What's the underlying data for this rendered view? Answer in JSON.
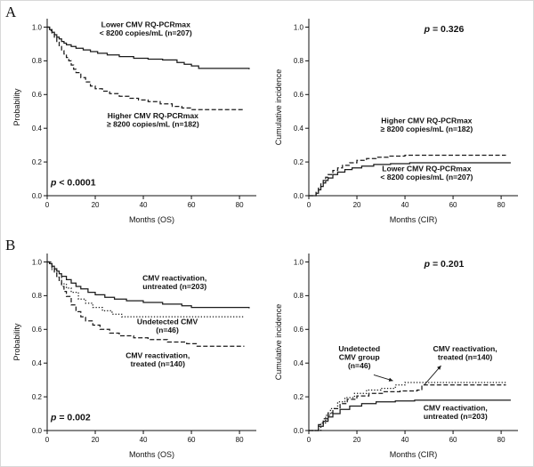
{
  "panels": {
    "a_label": "A",
    "b_label": "B"
  },
  "colors": {
    "line": "#1a1a1a",
    "background": "#ffffff"
  },
  "chart_data": [
    {
      "id": "panel-a-os",
      "type": "line",
      "subtype": "kaplan-meier-step",
      "title": "",
      "xlabel": "Months (OS)",
      "ylabel": "Probability",
      "xlim": [
        0,
        87
      ],
      "ylim": [
        0,
        1.05
      ],
      "xticks": [
        0,
        20,
        40,
        60,
        80
      ],
      "yticks": [
        0.0,
        0.2,
        0.4,
        0.6,
        0.8,
        1.0
      ],
      "grid": false,
      "p_value": {
        "italic": "p",
        "rest": "< 0.0001",
        "x": 1.5,
        "y": 0.06,
        "anchor": "start"
      },
      "series": [
        {
          "name": "Lower CMV RQ-PCRmax < 8200 copies/mL (n=207)",
          "style": "solid",
          "x": [
            0,
            1,
            2,
            3,
            4,
            5,
            6,
            7,
            8,
            10,
            12,
            15,
            18,
            21,
            25,
            30,
            36,
            42,
            48,
            54,
            57,
            60,
            63,
            84
          ],
          "y": [
            1.0,
            0.985,
            0.97,
            0.955,
            0.94,
            0.93,
            0.915,
            0.905,
            0.895,
            0.885,
            0.875,
            0.865,
            0.855,
            0.845,
            0.835,
            0.825,
            0.815,
            0.81,
            0.805,
            0.79,
            0.78,
            0.77,
            0.755,
            0.75
          ]
        },
        {
          "name": "Higher CMV RQ-PCRmax ≥ 8200 copies/mL (n=182)",
          "style": "dashed",
          "x": [
            0,
            1,
            2,
            3,
            4,
            5,
            6,
            7,
            8,
            9,
            10,
            11,
            12,
            14,
            16,
            18,
            20,
            23,
            26,
            30,
            34,
            38,
            42,
            47,
            52,
            56,
            60,
            82
          ],
          "y": [
            1.0,
            0.98,
            0.96,
            0.935,
            0.91,
            0.885,
            0.86,
            0.84,
            0.82,
            0.8,
            0.775,
            0.75,
            0.73,
            0.7,
            0.675,
            0.65,
            0.635,
            0.62,
            0.605,
            0.59,
            0.578,
            0.568,
            0.558,
            0.545,
            0.53,
            0.52,
            0.51,
            0.51
          ]
        }
      ],
      "annotations": [
        {
          "lines": [
            "Lower CMV RQ-PCRmax",
            "< 8200 copies/mL (n=207)"
          ],
          "x": 41,
          "y": 1.0,
          "anchor": "middle"
        },
        {
          "lines": [
            "Higher CMV RQ-PCRmax",
            "≥ 8200 copies/mL (n=182)"
          ],
          "x": 44,
          "y": 0.46,
          "anchor": "middle"
        }
      ],
      "arrows": []
    },
    {
      "id": "panel-a-cir",
      "type": "line",
      "subtype": "cumulative-incidence-step",
      "title": "",
      "xlabel": "Months (CIR)",
      "ylabel": "Cumulative incidence",
      "xlim": [
        0,
        87
      ],
      "ylim": [
        0,
        1.05
      ],
      "xticks": [
        0,
        20,
        40,
        60,
        80
      ],
      "yticks": [
        0.0,
        0.2,
        0.4,
        0.6,
        0.8,
        1.0
      ],
      "grid": false,
      "p_value": {
        "italic": "p",
        "rest": "= 0.326",
        "x": 48,
        "y": 0.97,
        "anchor": "start"
      },
      "series": [
        {
          "name": "Higher CMV RQ-PCRmax ≥ 8200 copies/mL (n=182)",
          "style": "dashed",
          "x": [
            0,
            2,
            3,
            4,
            5,
            6,
            7,
            8,
            10,
            12,
            14,
            17,
            20,
            24,
            28,
            33,
            40,
            82
          ],
          "y": [
            0,
            0,
            0.02,
            0.045,
            0.07,
            0.09,
            0.11,
            0.125,
            0.15,
            0.165,
            0.18,
            0.195,
            0.21,
            0.22,
            0.228,
            0.235,
            0.24,
            0.24
          ]
        },
        {
          "name": "Lower CMV RQ-PCRmax < 8200 copies/mL (n=207)",
          "style": "solid",
          "x": [
            0,
            2,
            3,
            4,
            5,
            6,
            7,
            8,
            10,
            12,
            15,
            18,
            22,
            27,
            34,
            42,
            84
          ],
          "y": [
            0,
            0,
            0.015,
            0.035,
            0.055,
            0.075,
            0.09,
            0.105,
            0.125,
            0.14,
            0.155,
            0.165,
            0.175,
            0.185,
            0.19,
            0.195,
            0.195
          ]
        }
      ],
      "annotations": [
        {
          "lines": [
            "Higher CMV RQ-PCRmax",
            "≥ 8200 copies/mL (n=182)"
          ],
          "x": 49,
          "y": 0.43,
          "anchor": "middle"
        },
        {
          "lines": [
            "Lower CMV RQ-PCRmax",
            "< 8200 copies/mL (n=207)"
          ],
          "x": 49,
          "y": 0.145,
          "anchor": "middle"
        }
      ],
      "arrows": []
    },
    {
      "id": "panel-b-os",
      "type": "line",
      "subtype": "kaplan-meier-step",
      "title": "",
      "xlabel": "Months (OS)",
      "ylabel": "Probability",
      "xlim": [
        0,
        87
      ],
      "ylim": [
        0,
        1.05
      ],
      "xticks": [
        0,
        20,
        40,
        60,
        80
      ],
      "yticks": [
        0.0,
        0.2,
        0.4,
        0.6,
        0.8,
        1.0
      ],
      "grid": false,
      "p_value": {
        "italic": "p",
        "rest": "= 0.002",
        "x": 1.5,
        "y": 0.06,
        "anchor": "start"
      },
      "series": [
        {
          "name": "CMV reactivation, untreated (n=203)",
          "style": "solid",
          "x": [
            0,
            1,
            2,
            3,
            4,
            5,
            6,
            8,
            10,
            12,
            14,
            17,
            20,
            24,
            28,
            33,
            40,
            48,
            56,
            60,
            84
          ],
          "y": [
            1.0,
            0.99,
            0.975,
            0.96,
            0.945,
            0.93,
            0.915,
            0.895,
            0.875,
            0.855,
            0.84,
            0.82,
            0.805,
            0.79,
            0.78,
            0.77,
            0.76,
            0.75,
            0.74,
            0.73,
            0.725
          ]
        },
        {
          "name": "Undetected CMV (n=46)",
          "style": "dotted",
          "x": [
            0,
            2,
            4,
            6,
            8,
            10,
            13,
            16,
            19,
            23,
            27,
            31,
            82
          ],
          "y": [
            1.0,
            0.955,
            0.91,
            0.87,
            0.845,
            0.82,
            0.78,
            0.755,
            0.73,
            0.71,
            0.69,
            0.675,
            0.675
          ]
        },
        {
          "name": "CMV reactivation, treated (n=140)",
          "style": "dashed",
          "x": [
            0,
            1,
            2,
            3,
            4,
            5,
            6,
            7,
            8,
            10,
            12,
            14,
            16,
            19,
            22,
            26,
            30,
            36,
            42,
            50,
            58,
            62,
            82
          ],
          "y": [
            1.0,
            0.985,
            0.965,
            0.94,
            0.915,
            0.885,
            0.855,
            0.825,
            0.795,
            0.745,
            0.705,
            0.675,
            0.65,
            0.625,
            0.6,
            0.578,
            0.562,
            0.55,
            0.54,
            0.525,
            0.515,
            0.5,
            0.5
          ]
        }
      ],
      "annotations": [
        {
          "lines": [
            "CMV reactivation,",
            "untreated (n=203)"
          ],
          "x": 53,
          "y": 0.89,
          "anchor": "middle"
        },
        {
          "lines": [
            "Undetected CMV",
            "(n=46)"
          ],
          "x": 50,
          "y": 0.63,
          "anchor": "middle"
        },
        {
          "lines": [
            "CMV reactivation,",
            "treated (n=140)"
          ],
          "x": 46,
          "y": 0.43,
          "anchor": "middle"
        }
      ],
      "arrows": []
    },
    {
      "id": "panel-b-cir",
      "type": "line",
      "subtype": "cumulative-incidence-step",
      "title": "",
      "xlabel": "Months (CIR)",
      "ylabel": "Cumulative incidence",
      "xlim": [
        0,
        87
      ],
      "ylim": [
        0,
        1.05
      ],
      "xticks": [
        0,
        20,
        40,
        60,
        80
      ],
      "yticks": [
        0.0,
        0.2,
        0.4,
        0.6,
        0.8,
        1.0
      ],
      "grid": false,
      "p_value": {
        "italic": "p",
        "rest": "= 0.201",
        "x": 48,
        "y": 0.97,
        "anchor": "start"
      },
      "series": [
        {
          "name": "Undetected CMV group (n=46)",
          "style": "dotted",
          "x": [
            0,
            3,
            5,
            7,
            9,
            12,
            15,
            19,
            24,
            30,
            36,
            40,
            82
          ],
          "y": [
            0,
            0,
            0.045,
            0.09,
            0.13,
            0.17,
            0.195,
            0.22,
            0.24,
            0.25,
            0.27,
            0.285,
            0.285
          ]
        },
        {
          "name": "CMV reactivation, treated (n=140)",
          "style": "dashed",
          "x": [
            0,
            2,
            4,
            6,
            8,
            10,
            13,
            16,
            20,
            25,
            31,
            38,
            45,
            47,
            82
          ],
          "y": [
            0,
            0,
            0.035,
            0.07,
            0.105,
            0.13,
            0.16,
            0.185,
            0.205,
            0.22,
            0.23,
            0.235,
            0.24,
            0.27,
            0.27
          ]
        },
        {
          "name": "CMV reactivation, untreated (n=203)",
          "style": "solid",
          "x": [
            0,
            2,
            4,
            6,
            8,
            10,
            13,
            17,
            22,
            28,
            36,
            44,
            84
          ],
          "y": [
            0,
            0,
            0.025,
            0.055,
            0.08,
            0.1,
            0.125,
            0.145,
            0.16,
            0.17,
            0.175,
            0.18,
            0.18
          ]
        }
      ],
      "annotations": [
        {
          "lines": [
            "Undetected",
            "CMV group",
            "(n=46)"
          ],
          "x": 21,
          "y": 0.47,
          "anchor": "middle"
        },
        {
          "lines": [
            "CMV reactivation,",
            "treated (n=140)"
          ],
          "x": 65,
          "y": 0.47,
          "anchor": "middle"
        },
        {
          "lines": [
            "CMV reactivation,",
            "untreated (n=203)"
          ],
          "x": 61,
          "y": 0.12,
          "anchor": "middle"
        }
      ],
      "arrows": [
        {
          "x1": 27,
          "y1": 0.33,
          "x2": 35,
          "y2": 0.295
        },
        {
          "x1": 48,
          "y1": 0.27,
          "x2": 55,
          "y2": 0.385
        }
      ]
    }
  ]
}
